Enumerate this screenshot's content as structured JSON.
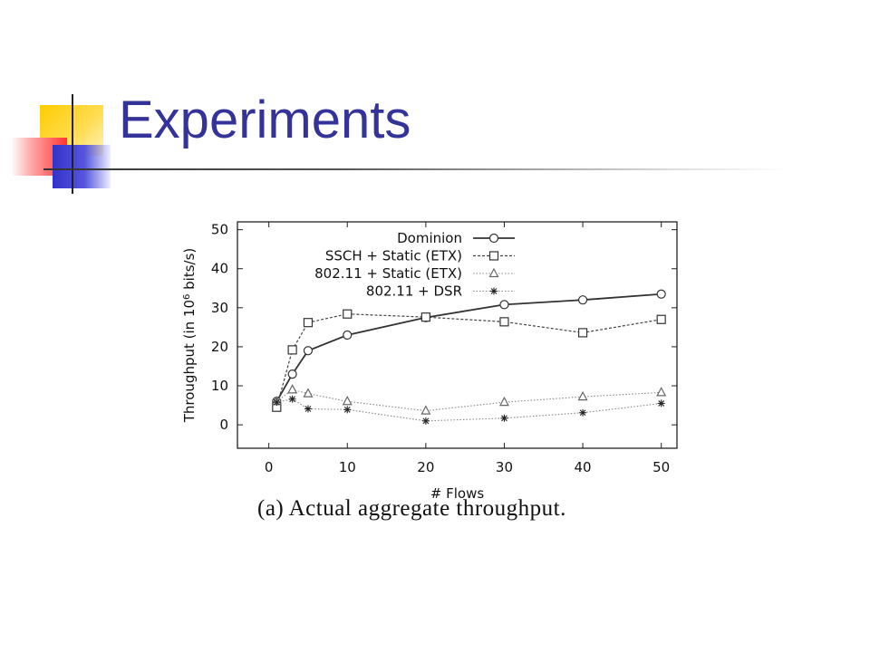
{
  "slide": {
    "title": "Experiments",
    "caption": "(a)  Actual aggregate throughput."
  },
  "colors": {
    "title": "#333399",
    "deco_yellow": "#ffcc00",
    "deco_red": "#ff3333",
    "deco_blue": "#3333cc"
  },
  "chart_data": {
    "type": "line",
    "xlabel": "# Flows",
    "ylabel": "Throughput (in 10^6 bits/s)",
    "xlim": [
      -4,
      52
    ],
    "ylim": [
      -6,
      52
    ],
    "xticks": [
      0,
      10,
      20,
      30,
      40,
      50
    ],
    "yticks": [
      0,
      10,
      20,
      30,
      40,
      50
    ],
    "grid": false,
    "legend_position": "top-right",
    "series": [
      {
        "name": "Dominion",
        "marker": "circle",
        "style": "solid",
        "x": [
          1,
          3,
          5,
          10,
          20,
          30,
          40,
          50
        ],
        "y": [
          6,
          13,
          19,
          23,
          27.5,
          30.8,
          32,
          33.5
        ]
      },
      {
        "name": "SSCH + Static (ETX)",
        "marker": "square",
        "style": "dashed",
        "x": [
          1,
          3,
          5,
          10,
          20,
          30,
          40,
          50
        ],
        "y": [
          4.5,
          19.2,
          26.2,
          28.4,
          27.6,
          26.4,
          23.6,
          27
        ]
      },
      {
        "name": "802.11 + Static (ETX)",
        "marker": "triangle",
        "style": "dotted",
        "x": [
          1,
          3,
          5,
          10,
          20,
          30,
          40,
          50
        ],
        "y": [
          6,
          9,
          8,
          6,
          3.6,
          5.8,
          7.2,
          8.3
        ]
      },
      {
        "name": "802.11 + DSR",
        "marker": "star",
        "style": "dotted",
        "x": [
          1,
          3,
          5,
          10,
          20,
          30,
          40,
          50
        ],
        "y": [
          5.8,
          6.6,
          4.1,
          3.9,
          1,
          1.7,
          3.1,
          5.5
        ]
      }
    ]
  }
}
